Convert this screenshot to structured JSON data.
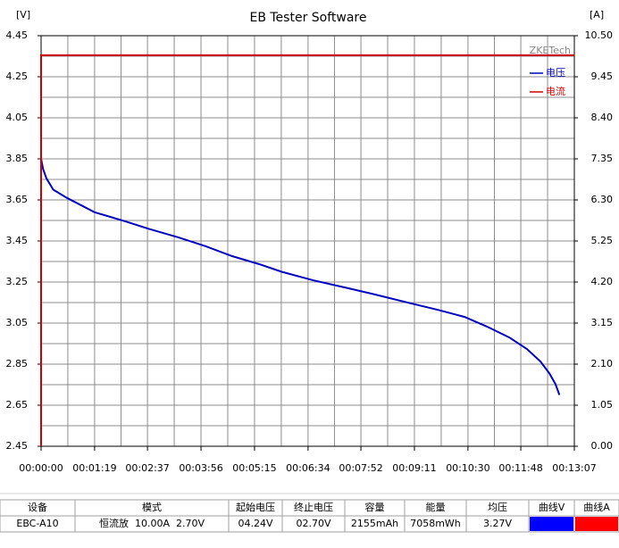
{
  "chart_data": {
    "type": "line",
    "title": "EB Tester Software",
    "y_label": "[V]",
    "y2_label": "[A]",
    "watermark": "ZKETech",
    "xlim": [
      0,
      787
    ],
    "xticks": [
      {
        "value": 0,
        "label": "00:00:00"
      },
      {
        "value": 79,
        "label": "00:01:19"
      },
      {
        "value": 157,
        "label": "00:02:37"
      },
      {
        "value": 236,
        "label": "00:03:56"
      },
      {
        "value": 315,
        "label": "00:05:15"
      },
      {
        "value": 394,
        "label": "00:06:34"
      },
      {
        "value": 472,
        "label": "00:07:52"
      },
      {
        "value": 551,
        "label": "00:09:11"
      },
      {
        "value": 630,
        "label": "00:10:30"
      },
      {
        "value": 708,
        "label": "00:11:48"
      },
      {
        "value": 787,
        "label": "00:13:07"
      }
    ],
    "ylim": [
      2.45,
      4.45
    ],
    "yticks": [
      2.45,
      2.65,
      2.85,
      3.05,
      3.25,
      3.45,
      3.65,
      3.85,
      4.05,
      4.25,
      4.45
    ],
    "y2lim": [
      0,
      10.5
    ],
    "y2ticks": [
      {
        "value": 0,
        "label": "0.00"
      },
      1.05,
      {
        "value": 2.1,
        "label": "2.10"
      },
      3.15,
      {
        "value": 4.2,
        "label": "4.20"
      },
      5.25,
      {
        "value": 6.3,
        "label": "6.30"
      },
      7.35,
      {
        "value": 8.4,
        "label": "8.40"
      },
      9.45,
      {
        "value": 10.5,
        "label": "10.50"
      }
    ],
    "grid": true,
    "legend": "upper right",
    "series": [
      {
        "name": "电压",
        "color": "#0000c0",
        "x": [
          0,
          3,
          8,
          18,
          38,
          79,
          124,
          158,
          203,
          243,
          282,
          322,
          355,
          401,
          453,
          493,
          546,
          585,
          625,
          658,
          691,
          717,
          737,
          750,
          759,
          765
        ],
        "values": [
          3.85,
          3.8,
          3.754,
          3.7,
          3.66,
          3.59,
          3.546,
          3.51,
          3.467,
          3.424,
          3.376,
          3.337,
          3.3,
          3.259,
          3.22,
          3.189,
          3.146,
          3.115,
          3.08,
          3.033,
          2.98,
          2.924,
          2.863,
          2.806,
          2.754,
          2.7
        ]
      },
      {
        "name": "电流",
        "color": "#d00000",
        "axis": "y2",
        "x": [
          0,
          0,
          787
        ],
        "values": [
          0,
          10,
          10
        ]
      }
    ]
  },
  "table": {
    "headers": [
      "设备",
      "模式",
      "起始电压",
      "终止电压",
      "容量",
      "能量",
      "均压",
      "曲线V",
      "曲线A"
    ],
    "rows": [
      [
        "EBC-A10",
        "恒流放  10.00A  2.70V",
        "04.24V",
        "02.70V",
        "2155mAh",
        "7058mWh",
        "3.27V"
      ]
    ]
  }
}
